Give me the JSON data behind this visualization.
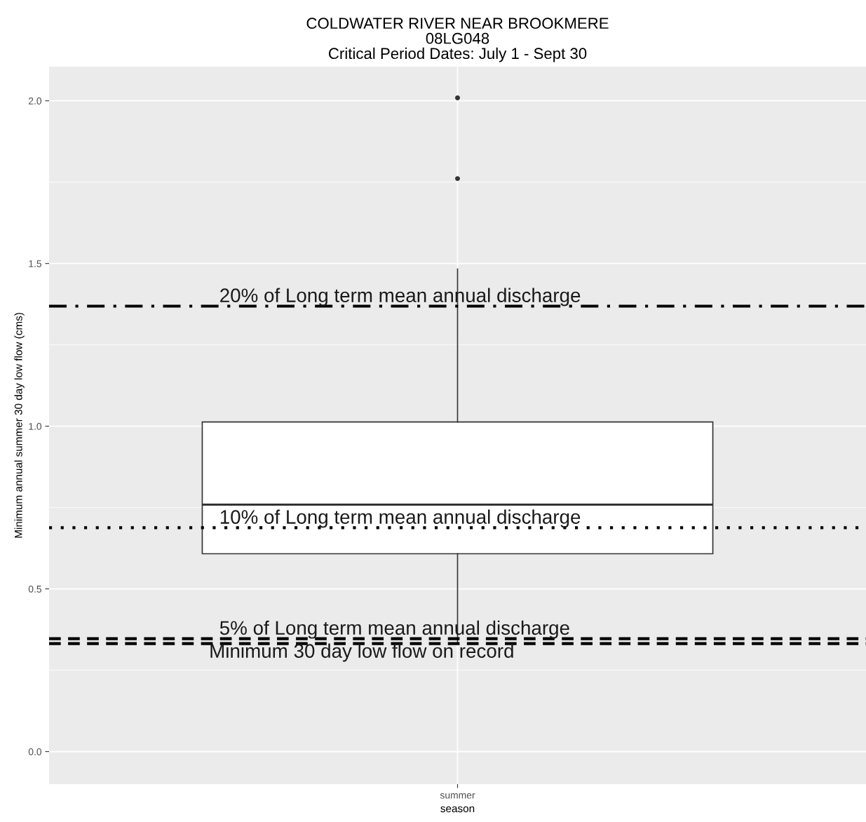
{
  "chart_data": {
    "type": "box",
    "title": "COLDWATER RIVER NEAR BROOKMERE\n08LG048\nCritical Period Dates: July 1 - Sept 30",
    "xlabel": "season",
    "ylabel": "Minimum annual summer 30 day low flow (cms)",
    "categories": [
      "summer"
    ],
    "boxes": [
      {
        "low": 0.332,
        "q1": 0.608,
        "median": 0.759,
        "q3": 1.013,
        "high": 1.483,
        "outliers": [
          1.761,
          2.009
        ]
      }
    ],
    "ylim": [
      -0.1,
      2.105
    ],
    "yticks": [
      {
        "value": 0,
        "label": "0.0"
      },
      0.5,
      {
        "value": 1,
        "label": "1.0"
      },
      1.5,
      {
        "value": 2,
        "label": "2.0"
      }
    ],
    "grid": true,
    "ref_lines": [
      {
        "axis": "y",
        "value": 1.369,
        "label": "20% of Long term mean annual discharge",
        "color": "#000000",
        "line_style": "dashdot"
      },
      {
        "axis": "y",
        "value": 0.688,
        "label": "10% of Long term mean annual discharge",
        "color": "#000000",
        "line_style": "dotted"
      },
      {
        "axis": "y",
        "value": 0.347,
        "label": "5% of Long term mean annual discharge",
        "color": "#000000",
        "line_style": "dashed"
      },
      {
        "axis": "y",
        "value": 0.332,
        "label": "Minimum 30 day low flow on record",
        "color": "#000000",
        "line_style": "dashed"
      }
    ]
  }
}
